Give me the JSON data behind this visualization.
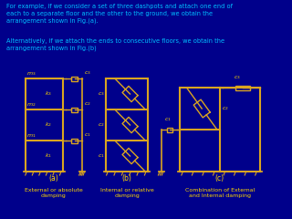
{
  "bg_color": "#00008B",
  "frame_color": "#DAA520",
  "text_color": "#00BFFF",
  "label_color": "#FFD700",
  "title_text1": "For example, if we consider a set of three dashpots and attach one end of\neach to a separate floor and the other to the ground, we obtain the\narrangement shown in Fig.(a).",
  "title_text2": "Alternatively, if we attach the ends to consecutive floors, we obtain the\narrangement shown in Fig.(b)",
  "caption_a": "External or absolute\ndamping",
  "caption_b": "Internal or relative\ndamping",
  "caption_c": "Combination of External\nand Internal damping",
  "label_a": "(a)",
  "label_b": "(b)",
  "label_c": "(c)"
}
